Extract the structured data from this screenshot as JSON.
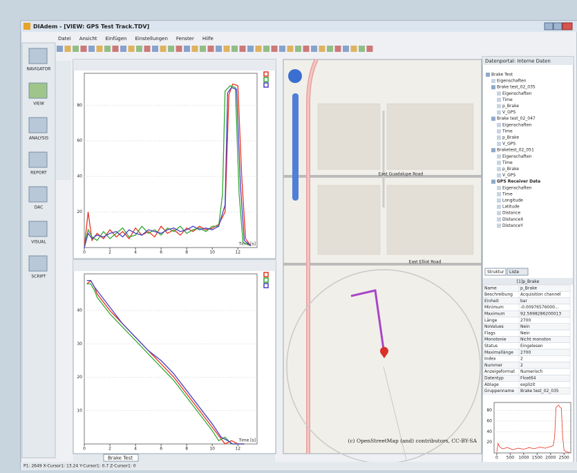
{
  "window": {
    "title": "DIAdem - [VIEW: GPS Test Track.TDV]",
    "menu": [
      "Datei",
      "Ansicht",
      "Einfügen",
      "Einstellungen",
      "Fenster",
      "Hilfe"
    ]
  },
  "navigation": [
    "NAVIGATOR",
    "VIEW",
    "ANALYSIS",
    "REPORT",
    "DAC",
    "VISUAL",
    "SCRIPT"
  ],
  "plots": [
    {
      "x_label": "Time [s]",
      "xlim": [
        0,
        13.5
      ],
      "ylim": [
        0,
        98
      ],
      "xticks": [
        0,
        2,
        4,
        6,
        8,
        10,
        12
      ],
      "yticks": [
        20,
        40,
        60,
        80
      ],
      "series": [
        {
          "color": "#e8321e",
          "x": [
            0,
            0.3,
            0.6,
            1,
            1.5,
            2,
            2.5,
            3,
            3.5,
            4,
            4.5,
            5,
            5.5,
            6,
            6.5,
            7,
            7.5,
            8,
            8.5,
            9,
            9.5,
            10,
            10.5,
            11,
            11.3,
            11.6,
            12,
            12.3,
            12.6,
            13
          ],
          "y": [
            0,
            20,
            4,
            8,
            5,
            10,
            6,
            9,
            5,
            11,
            7,
            9,
            6,
            12,
            8,
            10,
            7,
            11,
            9,
            12,
            10,
            11,
            13,
            20,
            86,
            92,
            91,
            40,
            5,
            1
          ]
        },
        {
          "color": "#2fa830",
          "x": [
            0,
            0.3,
            0.6,
            1,
            1.5,
            2,
            2.5,
            3,
            3.5,
            4,
            4.5,
            5,
            5.5,
            6,
            6.5,
            7,
            7.5,
            8,
            8.5,
            9,
            9.5,
            10,
            10.5,
            10.8,
            11,
            11.4,
            11.8,
            12.1,
            12.4,
            13
          ],
          "y": [
            0,
            10,
            6,
            4,
            9,
            5,
            8,
            11,
            6,
            7,
            12,
            8,
            10,
            7,
            11,
            9,
            12,
            8,
            10,
            11,
            9,
            12,
            12,
            30,
            88,
            91,
            90,
            30,
            3,
            1
          ]
        },
        {
          "color": "#4a3fc0",
          "x": [
            0,
            0.3,
            0.6,
            1,
            1.5,
            2,
            2.5,
            3,
            3.5,
            4,
            4.5,
            5,
            5.5,
            6,
            6.5,
            7,
            7.5,
            8,
            8.5,
            9,
            9.5,
            10,
            10.5,
            11,
            11.2,
            11.5,
            11.9,
            12.2,
            12.5,
            13
          ],
          "y": [
            0,
            8,
            5,
            7,
            6,
            8,
            9,
            6,
            10,
            8,
            7,
            10,
            9,
            8,
            10,
            11,
            9,
            10,
            12,
            10,
            11,
            10,
            12,
            24,
            87,
            90,
            89,
            35,
            4,
            1
          ]
        }
      ]
    },
    {
      "x_label": "Time [s]",
      "xlim": [
        0,
        13.5
      ],
      "ylim": [
        0,
        51
      ],
      "xticks": [
        0,
        2,
        4,
        6,
        8,
        10,
        12
      ],
      "yticks": [
        10,
        20,
        30,
        40
      ],
      "series": [
        {
          "color": "#e8321e",
          "x": [
            0.2,
            0.5,
            0.8,
            1,
            2,
            3,
            4,
            5,
            6,
            7,
            8,
            9,
            10,
            10.6,
            11,
            11.5,
            12,
            12.5
          ],
          "y": [
            48,
            49,
            47,
            45,
            40,
            36,
            32,
            28,
            24,
            20,
            15,
            10,
            5,
            2,
            0,
            1,
            0,
            0
          ]
        },
        {
          "color": "#2fa830",
          "x": [
            0.2,
            0.5,
            0.8,
            1,
            2,
            3,
            4,
            5,
            6,
            7,
            8,
            9,
            10,
            10.5,
            11,
            11.5,
            12,
            12.5
          ],
          "y": [
            48,
            48,
            46,
            44,
            39,
            35,
            31,
            27,
            23,
            19,
            14,
            9,
            4,
            1,
            2,
            0,
            0,
            0
          ]
        },
        {
          "color": "#4a3fc0",
          "x": [
            0.2,
            0.5,
            0.8,
            1,
            2,
            3,
            4,
            5,
            6,
            7,
            8,
            9,
            10,
            10.7,
            11.2,
            11.6,
            12,
            12.5
          ],
          "y": [
            49,
            49,
            47,
            46,
            41,
            36,
            32,
            28,
            25,
            21,
            16,
            11,
            6,
            2,
            1,
            0,
            0,
            0
          ]
        }
      ]
    },
    {
      "xlim": [
        -100,
        2750
      ],
      "ylim": [
        0,
        95
      ],
      "xticks": [
        0,
        500,
        1000,
        1500,
        2000,
        2500
      ],
      "yticks": [
        20,
        40,
        60,
        80
      ],
      "series": [
        {
          "color": "#e8321e",
          "x": [
            0,
            50,
            100,
            200,
            400,
            600,
            800,
            1000,
            1200,
            1400,
            1600,
            1800,
            2000,
            2100,
            2150,
            2200,
            2250,
            2300,
            2350,
            2400,
            2450,
            2500,
            2600,
            2700
          ],
          "y": [
            2,
            18,
            12,
            8,
            10,
            6,
            9,
            7,
            10,
            8,
            11,
            9,
            12,
            14,
            30,
            85,
            88,
            90,
            86,
            84,
            30,
            5,
            2,
            1
          ]
        }
      ]
    }
  ],
  "sheet_tab": "Brake Test",
  "map": {
    "roads": [
      "East Guadalupe Road",
      "East Elliot Road"
    ],
    "attribution": "(c) OpenStreetMap (and) contributors, CC-BY-SA"
  },
  "data_portal": {
    "title": "Datenportal: Interne Daten",
    "tabs": [
      "Struktur",
      "Liste"
    ],
    "tree": {
      "label": "Brake Test",
      "children": [
        {
          "label": "Eigenschaften"
        },
        {
          "label": "Brake test_02_035",
          "children": [
            {
              "label": "Eigenschaften"
            },
            {
              "label": "Time"
            },
            {
              "label": "p_Brake"
            },
            {
              "label": "V_GPS"
            }
          ]
        },
        {
          "label": "Brake test_02_047",
          "children": [
            {
              "label": "Eigenschaften"
            },
            {
              "label": "Time"
            },
            {
              "label": "p_Brake"
            },
            {
              "label": "V_GPS"
            }
          ]
        },
        {
          "label": "Braketest_02_051",
          "children": [
            {
              "label": "Eigenschaften"
            },
            {
              "label": "Time"
            },
            {
              "label": "p_Brake"
            },
            {
              "label": "V_GPS"
            }
          ]
        },
        {
          "label": "GPS Receiver Data",
          "bold": true,
          "children": [
            {
              "label": "Eigenschaften"
            },
            {
              "label": "Time"
            },
            {
              "label": "Longitude"
            },
            {
              "label": "Latitude"
            },
            {
              "label": "Distance"
            },
            {
              "label": "DistanceX"
            },
            {
              "label": "DistanceY"
            }
          ]
        }
      ]
    }
  },
  "properties": {
    "title": "[1]p_Brake",
    "rows": [
      [
        "Name",
        "p_Brake"
      ],
      [
        "Beschreibung",
        "Acquisition channel"
      ],
      [
        "Einheit",
        "bar"
      ],
      [
        "Minimum",
        "-0.00976576000..."
      ],
      [
        "Maximum",
        "92.5698286200013"
      ],
      [
        "Länge",
        "2700"
      ],
      [
        "NoValues",
        "Nein"
      ],
      [
        "Flags",
        "Nein"
      ],
      [
        "Monotonie",
        "Nicht monoton"
      ],
      [
        "Status",
        "Eingelesen"
      ],
      [
        "Maximallänge",
        "2700"
      ],
      [
        "Index",
        "2"
      ],
      [
        "Nummer",
        "2"
      ],
      [
        "Anzeigeformat",
        "Numerisch"
      ],
      [
        "Datentyp",
        "Float64"
      ],
      [
        "Ablage",
        "explizit"
      ],
      [
        "Gruppenname",
        "Brake test_02_035"
      ]
    ]
  },
  "status_bar": "P1: 2649 X-Cursor1: 13.24 Y-Cursor1: 0.7 Z-Cursor1: 0"
}
